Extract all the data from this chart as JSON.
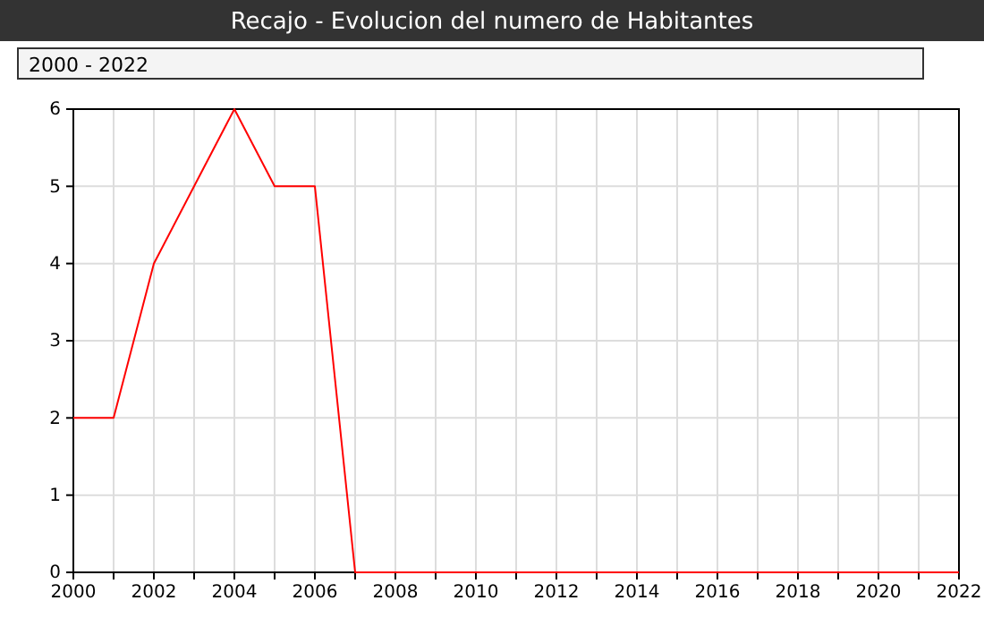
{
  "chart_data": {
    "type": "line",
    "title": "Recajo - Evolucion del numero de Habitantes",
    "annotations": [
      "2000 - 2022"
    ],
    "x": [
      2000,
      2001,
      2002,
      2003,
      2004,
      2005,
      2006,
      2007,
      2008,
      2009,
      2010,
      2011,
      2012,
      2013,
      2014,
      2015,
      2016,
      2017,
      2018,
      2019,
      2020,
      2021,
      2022
    ],
    "series": [
      {
        "color": "#ff0000",
        "values": [
          2,
          2,
          4,
          5,
          6,
          5,
          5,
          0,
          0,
          0,
          0,
          0,
          0,
          0,
          0,
          0,
          0,
          0,
          0,
          0,
          0,
          0,
          0
        ]
      }
    ],
    "xlim": [
      2000,
      2022
    ],
    "xticks": [
      2000,
      {
        "value": 2001,
        "label": null
      },
      2002,
      {
        "value": 2003,
        "label": null
      },
      2004,
      {
        "value": 2005,
        "label": null
      },
      2006,
      {
        "value": 2007,
        "label": null
      },
      2008,
      {
        "value": 2009,
        "label": null
      },
      2010,
      {
        "value": 2011,
        "label": null
      },
      2012,
      {
        "value": 2013,
        "label": null
      },
      2014,
      {
        "value": 2015,
        "label": null
      },
      2016,
      {
        "value": 2017,
        "label": null
      },
      2018,
      {
        "value": 2019,
        "label": null
      },
      2020,
      {
        "value": 2021,
        "label": null
      },
      2022
    ],
    "ylim": [
      0,
      6
    ],
    "yticks": [
      0,
      1,
      2,
      3,
      4,
      5,
      6
    ],
    "grid": true,
    "marker": "none",
    "line_style": "solid"
  }
}
